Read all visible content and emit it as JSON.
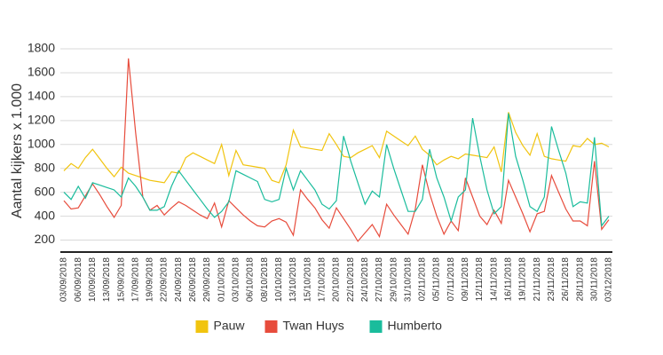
{
  "chart_data": {
    "type": "line",
    "y_label": "Aantal kijkers x 1.000",
    "categories": [
      "03/09/2018",
      null,
      "06/09/2018",
      null,
      "10/09/2018",
      null,
      "13/09/2018",
      null,
      "15/09/2018",
      null,
      "17/09/2018",
      null,
      "19/09/2018",
      null,
      "22/09/2018",
      null,
      "24/09/2018",
      null,
      "26/09/2018",
      null,
      "29/09/2018",
      null,
      "01/10/2018",
      null,
      "03/10/2018",
      null,
      "06/10/2018",
      null,
      "08/10/2018",
      null,
      "10/10/2018",
      null,
      "13/10/2018",
      null,
      "15/10/2018",
      null,
      "17/10/2018",
      null,
      "20/10/2018",
      null,
      "22/10/2018",
      null,
      "24/10/2018",
      null,
      "27/10/2018",
      null,
      "29/10/2018",
      null,
      "31/10/2018",
      null,
      "02/11/2018",
      null,
      "05/11/2018",
      null,
      "07/11/2018",
      null,
      "09/11/2018",
      null,
      "12/11/2018",
      null,
      "14/11/2018",
      null,
      "16/11/2018",
      null,
      "19/11/2018",
      null,
      "21/11/2018",
      null,
      "23/11/2018",
      null,
      "26/11/2018",
      null,
      "28/11/2018",
      null,
      "30/11/2018",
      null,
      "03/12/2018"
    ],
    "series": [
      {
        "name": "Pauw",
        "color": "#f1c40f",
        "values": [
          780,
          840,
          800,
          890,
          960,
          880,
          800,
          730,
          810,
          760,
          740,
          720,
          700,
          690,
          680,
          770,
          760,
          890,
          930,
          900,
          870,
          840,
          1000,
          740,
          950,
          830,
          820,
          810,
          800,
          700,
          680,
          830,
          1120,
          980,
          970,
          960,
          950,
          1090,
          1000,
          900,
          890,
          930,
          960,
          990,
          890,
          1110,
          1070,
          1030,
          990,
          1070,
          960,
          910,
          830,
          870,
          900,
          880,
          920,
          910,
          900,
          890,
          980,
          770,
          1270,
          1100,
          990,
          910,
          1090,
          900,
          880,
          870,
          860,
          990,
          980,
          1050,
          1000,
          1010,
          980
        ]
      },
      {
        "name": "Twan Huys",
        "color": "#e74c3c",
        "values": [
          530,
          460,
          470,
          570,
          670,
          580,
          480,
          390,
          490,
          1720,
          1100,
          560,
          450,
          490,
          410,
          470,
          520,
          490,
          450,
          410,
          380,
          510,
          310,
          530,
          470,
          410,
          360,
          320,
          310,
          360,
          380,
          350,
          240,
          620,
          540,
          470,
          370,
          300,
          470,
          380,
          290,
          190,
          260,
          330,
          230,
          500,
          410,
          330,
          250,
          460,
          830,
          590,
          400,
          250,
          360,
          280,
          720,
          560,
          400,
          330,
          450,
          340,
          700,
          560,
          420,
          270,
          420,
          440,
          740,
          600,
          460,
          360,
          360,
          320,
          860,
          290,
          370
        ]
      },
      {
        "name": "Humberto",
        "color": "#1abc9c",
        "values": [
          600,
          540,
          650,
          550,
          680,
          660,
          640,
          620,
          560,
          720,
          650,
          560,
          450,
          450,
          480,
          650,
          780,
          700,
          620,
          540,
          460,
          390,
          440,
          520,
          780,
          750,
          720,
          690,
          540,
          520,
          540,
          800,
          620,
          780,
          700,
          620,
          500,
          460,
          530,
          1070,
          860,
          680,
          500,
          610,
          560,
          1000,
          800,
          620,
          440,
          440,
          540,
          960,
          720,
          560,
          360,
          560,
          620,
          1220,
          900,
          620,
          420,
          480,
          1260,
          900,
          700,
          480,
          440,
          560,
          1150,
          950,
          760,
          480,
          520,
          510,
          1060,
          320,
          400
        ]
      }
    ],
    "ylim": [
      100,
      1800
    ],
    "yticks": [
      200,
      400,
      600,
      800,
      1000,
      1200,
      1400,
      1600,
      1800
    ],
    "grid": true,
    "legend": "bottom"
  }
}
